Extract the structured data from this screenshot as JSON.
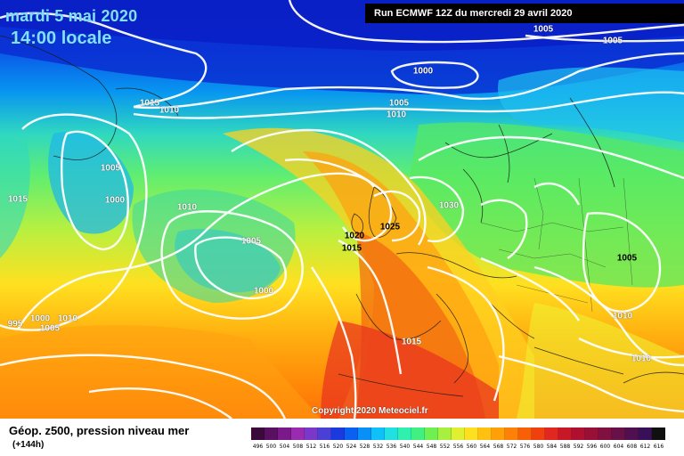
{
  "header": {
    "date": "mardi 5 mai 2020",
    "local_time": "14:00 locale",
    "run": "Run ECMWF 12Z du mercredi 29 avril 2020"
  },
  "footer": {
    "parameter": "Géop. z500, pression niveau mer",
    "lead_time": "(+144h)",
    "copyright": "Copyright 2020 Meteociel.fr"
  },
  "isobar_labels": [
    "1005",
    "1005",
    "1000",
    "1005",
    "1010",
    "1015",
    "1010",
    "1005",
    "1015",
    "1000",
    "1010",
    "1005",
    "1000",
    "1020",
    "1015",
    "1025",
    "1030",
    "995",
    "1000",
    "1005",
    "1010",
    "1015",
    "1005",
    "1010",
    "1010"
  ],
  "colorbar": {
    "labels": [
      "496",
      "500",
      "504",
      "508",
      "512",
      "516",
      "520",
      "524",
      "528",
      "532",
      "536",
      "540",
      "544",
      "548",
      "552",
      "556",
      "560",
      "564",
      "568",
      "572",
      "576",
      "580",
      "584",
      "588",
      "592",
      "596",
      "600",
      "604",
      "608",
      "612",
      "616"
    ],
    "colors": [
      "#3a0a3a",
      "#5a1060",
      "#7a1a8a",
      "#9a2ab0",
      "#7a38c8",
      "#4a40d8",
      "#1a3ae0",
      "#0a60f0",
      "#0890f8",
      "#10c0f8",
      "#20e0e0",
      "#30f0b0",
      "#40f080",
      "#70f050",
      "#a8f040",
      "#e0f030",
      "#ffe020",
      "#ffc010",
      "#ffa008",
      "#ff8008",
      "#f86008",
      "#f04010",
      "#e02820",
      "#c81828",
      "#b01030",
      "#981038",
      "#801040",
      "#681048",
      "#501050",
      "#381058",
      "#101010"
    ]
  }
}
